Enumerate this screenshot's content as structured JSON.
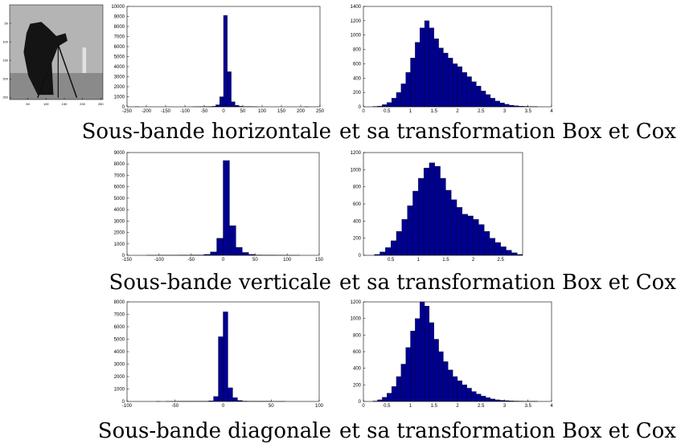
{
  "chart_data": [
    {
      "type": "image",
      "xlim": [
        0,
        256
      ],
      "ylim": [
        0,
        256
      ],
      "xticks": [
        50,
        100,
        150,
        200,
        250
      ],
      "yticks": [
        50,
        100,
        150,
        200,
        250
      ]
    },
    {
      "type": "histogram",
      "color": "#00008f",
      "bins": [
        -250,
        -240,
        -230,
        -220,
        -210,
        -200,
        -190,
        -180,
        -170,
        -160,
        -150,
        -140,
        -130,
        -120,
        -110,
        -100,
        -90,
        -80,
        -70,
        -60,
        -50,
        -40,
        -30,
        -20,
        -10,
        0,
        10,
        20,
        30,
        40,
        50,
        60,
        70,
        80,
        90,
        100,
        110,
        120,
        130,
        140,
        150,
        160,
        170,
        180,
        190,
        200,
        210,
        220,
        230,
        240,
        250
      ],
      "counts": [
        0,
        0,
        5,
        0,
        0,
        0,
        0,
        0,
        0,
        0,
        0,
        0,
        0,
        0,
        0,
        0,
        0,
        5,
        10,
        15,
        20,
        30,
        50,
        200,
        1000,
        9100,
        3500,
        500,
        150,
        50,
        20,
        15,
        10,
        5,
        0,
        0,
        0,
        0,
        0,
        0,
        0,
        0,
        0,
        0,
        0,
        0,
        5,
        0,
        0,
        0
      ],
      "xlim": [
        -250,
        250
      ],
      "ylim": [
        0,
        10000
      ],
      "xticks": [
        -250,
        -200,
        -150,
        -100,
        -50,
        0,
        50,
        100,
        150,
        200,
        250
      ],
      "yticks": [
        0,
        1000,
        2000,
        3000,
        4000,
        5000,
        6000,
        7000,
        8000,
        9000,
        10000
      ]
    },
    {
      "type": "histogram",
      "color": "#00008f",
      "bins": [
        0,
        0.1,
        0.2,
        0.3,
        0.4,
        0.5,
        0.6,
        0.7,
        0.8,
        0.9,
        1,
        1.1,
        1.2,
        1.3,
        1.4,
        1.5,
        1.6,
        1.7,
        1.8,
        1.9,
        2,
        2.1,
        2.2,
        2.3,
        2.4,
        2.5,
        2.6,
        2.7,
        2.8,
        2.9,
        3,
        3.1,
        3.2,
        3.3,
        3.4,
        3.5,
        3.6,
        3.7,
        3.8,
        3.9,
        4
      ],
      "counts": [
        0,
        0,
        5,
        10,
        30,
        60,
        120,
        200,
        320,
        480,
        680,
        900,
        1100,
        1200,
        1100,
        950,
        820,
        750,
        680,
        600,
        560,
        480,
        420,
        350,
        290,
        220,
        170,
        120,
        80,
        55,
        35,
        22,
        14,
        9,
        6,
        4,
        2,
        0,
        0,
        0
      ],
      "xlim": [
        0,
        4
      ],
      "ylim": [
        0,
        1400
      ],
      "xticks": [
        0,
        0.5,
        1,
        1.5,
        2,
        2.5,
        3,
        3.5,
        4
      ],
      "yticks": [
        0,
        200,
        400,
        600,
        800,
        1000,
        1200,
        1400
      ]
    },
    {
      "type": "histogram",
      "color": "#00008f",
      "bins": [
        -150,
        -140,
        -130,
        -120,
        -110,
        -100,
        -90,
        -80,
        -70,
        -60,
        -50,
        -40,
        -30,
        -20,
        -10,
        0,
        10,
        20,
        30,
        40,
        50,
        60,
        70,
        80,
        90,
        100,
        110,
        120,
        130,
        140,
        150
      ],
      "counts": [
        0,
        0,
        0,
        5,
        5,
        10,
        10,
        10,
        15,
        20,
        30,
        30,
        80,
        300,
        1500,
        8300,
        2600,
        700,
        250,
        80,
        30,
        20,
        15,
        10,
        10,
        5,
        5,
        0,
        0,
        0
      ],
      "xlim": [
        -150,
        150
      ],
      "ylim": [
        0,
        9000
      ],
      "xticks": [
        -150,
        -100,
        -50,
        0,
        50,
        100,
        150
      ],
      "yticks": [
        0,
        1000,
        2000,
        3000,
        4000,
        5000,
        6000,
        7000,
        8000,
        9000
      ]
    },
    {
      "type": "histogram",
      "color": "#00008f",
      "bins": [
        0,
        0.1,
        0.2,
        0.3,
        0.4,
        0.5,
        0.6,
        0.7,
        0.8,
        0.9,
        1,
        1.1,
        1.2,
        1.3,
        1.4,
        1.5,
        1.6,
        1.7,
        1.8,
        1.9,
        2,
        2.1,
        2.2,
        2.3,
        2.4,
        2.5,
        2.6,
        2.7,
        2.8,
        2.9
      ],
      "counts": [
        0,
        0,
        10,
        40,
        90,
        170,
        280,
        420,
        580,
        750,
        900,
        1020,
        1080,
        1040,
        900,
        760,
        650,
        560,
        480,
        460,
        420,
        360,
        280,
        200,
        150,
        100,
        60,
        30,
        10
      ],
      "xlim": [
        0,
        2.9
      ],
      "ylim": [
        0,
        1200
      ],
      "xticks": [
        0.5,
        1,
        1.5,
        2,
        2.5
      ],
      "yticks": [
        0,
        200,
        400,
        600,
        800,
        1000,
        1200
      ]
    },
    {
      "type": "histogram",
      "color": "#00008f",
      "bins": [
        -100,
        -95,
        -90,
        -85,
        -80,
        -75,
        -70,
        -65,
        -60,
        -55,
        -50,
        -45,
        -40,
        -35,
        -30,
        -25,
        -20,
        -15,
        -10,
        -5,
        0,
        5,
        10,
        15,
        20,
        25,
        30,
        35,
        40,
        45,
        50,
        55,
        60,
        65,
        70,
        75,
        80,
        85,
        90,
        95,
        100
      ],
      "counts": [
        0,
        0,
        0,
        0,
        0,
        0,
        5,
        0,
        5,
        5,
        10,
        10,
        10,
        15,
        15,
        20,
        20,
        50,
        400,
        5200,
        7200,
        1100,
        300,
        80,
        30,
        20,
        15,
        10,
        10,
        10,
        5,
        5,
        5,
        0,
        0,
        0,
        0,
        0,
        0,
        0
      ],
      "xlim": [
        -100,
        100
      ],
      "ylim": [
        0,
        8000
      ],
      "xticks": [
        -100,
        -50,
        0,
        50,
        100
      ],
      "yticks": [
        0,
        1000,
        2000,
        3000,
        4000,
        5000,
        6000,
        7000,
        8000
      ]
    },
    {
      "type": "histogram",
      "color": "#00008f",
      "bins": [
        0,
        0.1,
        0.2,
        0.3,
        0.4,
        0.5,
        0.6,
        0.7,
        0.8,
        0.9,
        1,
        1.1,
        1.2,
        1.3,
        1.4,
        1.5,
        1.6,
        1.7,
        1.8,
        1.9,
        2,
        2.1,
        2.2,
        2.3,
        2.4,
        2.5,
        2.6,
        2.7,
        2.8,
        2.9,
        3,
        3.1,
        3.2,
        3.3,
        3.4,
        3.5,
        3.6,
        3.7,
        3.8,
        3.9,
        4
      ],
      "counts": [
        0,
        0,
        5,
        20,
        50,
        100,
        180,
        300,
        450,
        650,
        850,
        1000,
        1200,
        1150,
        950,
        750,
        600,
        480,
        380,
        300,
        250,
        200,
        160,
        120,
        90,
        65,
        45,
        30,
        20,
        14,
        10,
        7,
        5,
        4,
        3,
        3,
        2,
        0,
        0,
        0
      ],
      "xlim": [
        0,
        4
      ],
      "ylim": [
        0,
        1200
      ],
      "xticks": [
        0,
        0.5,
        1,
        1.5,
        2,
        2.5,
        3,
        3.5,
        4
      ],
      "yticks": [
        0,
        200,
        400,
        600,
        800,
        1000,
        1200
      ]
    }
  ],
  "captions": [
    "Sous-bande horizontale",
    "et sa transformation Box et Cox",
    "Sous-bande verticale",
    "et sa transformation Box et Cox",
    "Sous-bande diagonale",
    "et sa transformation Box et Cox"
  ]
}
